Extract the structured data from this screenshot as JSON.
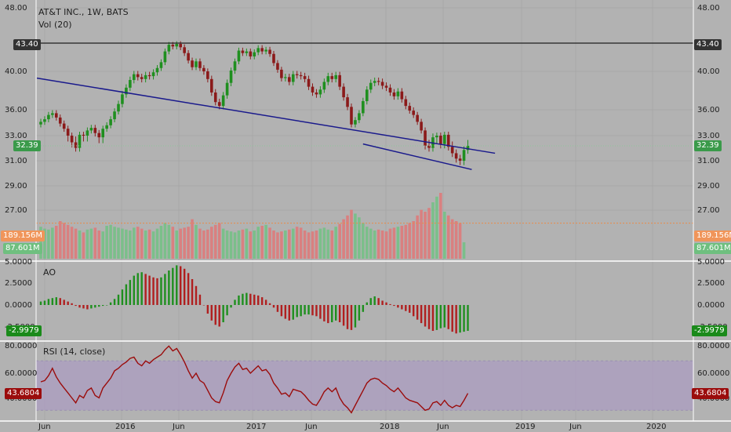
{
  "header": {
    "symbol": "AT&T INC., 1W, BATS",
    "volume_label": "Vol (20)",
    "ao_label": "AO",
    "rsi_label": "RSI (14, close)"
  },
  "axes": {
    "price_ticks": [
      "48.00",
      "40.00",
      "36.00",
      "33.00",
      "31.00",
      "29.00",
      "27.00"
    ],
    "ao_ticks": [
      "5.0000",
      "2.5000",
      "0.0000",
      "-2.5000"
    ],
    "rsi_ticks": [
      "80.0000",
      "60.0000",
      "40.0000"
    ],
    "time_ticks": [
      "Jun",
      "2016",
      "Jun",
      "2017",
      "Jun",
      "2018",
      "Jun",
      "2019",
      "Jun",
      "2020"
    ]
  },
  "tags": {
    "resistance": "43.40",
    "last_price": "32.39",
    "vol_avg": "189.156M",
    "vol_last": "87.601M",
    "ao_last": "-2.9979",
    "rsi_last": "43.6804"
  },
  "colors": {
    "background": "#b2b2b2",
    "up": "#1f8f1f",
    "down": "#8b1a1a",
    "vol_up": "#7bbf8a",
    "vol_down": "#d98080",
    "trendline": "#1a1a8c",
    "resistance": "#1e1e1e",
    "rsi_line": "#9b0c0c",
    "rsi_band": "#ab9cc0",
    "ao_up": "#1e8f1e",
    "ao_down": "#b01f1f",
    "tag_last": "#3a9a4a",
    "tag_vol_avg": "#f0955a",
    "tag_vol_last": "#6fbf7f",
    "tag_ao": "#1a8a1a",
    "tag_rsi": "#9b0c0c"
  },
  "chart_data": {
    "type": "line",
    "title": "AT&T INC., 1W, BATS",
    "price_close": [
      34.6,
      34.9,
      35.4,
      35.6,
      35.1,
      34.4,
      33.8,
      33.0,
      32.6,
      32.2,
      33.1,
      33.0,
      33.6,
      33.9,
      33.3,
      32.9,
      33.8,
      34.2,
      34.9,
      35.8,
      36.6,
      37.6,
      38.3,
      39.1,
      39.7,
      39.4,
      39.2,
      39.6,
      39.5,
      39.9,
      40.4,
      41.1,
      42.4,
      43.2,
      43.0,
      43.3,
      42.9,
      42.2,
      41.3,
      40.5,
      41.2,
      40.4,
      40.0,
      39.2,
      37.8,
      36.8,
      36.4,
      37.5,
      38.8,
      40.1,
      41.2,
      42.5,
      42.2,
      42.4,
      41.8,
      42.3,
      42.8,
      42.4,
      42.6,
      42.1,
      41.0,
      40.2,
      39.3,
      39.4,
      38.9,
      39.7,
      39.6,
      39.5,
      39.2,
      38.4,
      37.8,
      37.6,
      38.1,
      38.9,
      39.5,
      39.2,
      39.6,
      38.4,
      37.3,
      36.3,
      34.3,
      34.8,
      35.6,
      36.9,
      38.1,
      38.8,
      39.0,
      38.9,
      38.5,
      38.3,
      37.8,
      37.4,
      37.9,
      37.1,
      36.4,
      35.9,
      35.4,
      34.6,
      33.6,
      32.4,
      32.2,
      32.9,
      33.0,
      32.5,
      33.1,
      32.3,
      31.7,
      31.2,
      31.0,
      32.0,
      32.39
    ],
    "volume_m": [
      170,
      160,
      155,
      165,
      175,
      200,
      190,
      180,
      170,
      160,
      150,
      140,
      155,
      160,
      165,
      150,
      145,
      175,
      180,
      170,
      165,
      160,
      155,
      150,
      165,
      170,
      160,
      150,
      155,
      145,
      160,
      175,
      190,
      180,
      170,
      150,
      160,
      165,
      170,
      210,
      180,
      160,
      150,
      155,
      170,
      180,
      190,
      160,
      150,
      145,
      140,
      150,
      155,
      160,
      145,
      150,
      170,
      175,
      180,
      165,
      150,
      140,
      145,
      150,
      155,
      160,
      170,
      165,
      150,
      140,
      145,
      150,
      160,
      165,
      155,
      150,
      170,
      185,
      210,
      230,
      260,
      240,
      220,
      190,
      170,
      160,
      150,
      155,
      150,
      145,
      160,
      165,
      170,
      175,
      180,
      190,
      200,
      230,
      260,
      250,
      270,
      300,
      330,
      350,
      250,
      230,
      210,
      200,
      190,
      87.601
    ],
    "volume_avg_m": 189.156,
    "ao": [
      0.4,
      0.5,
      0.7,
      0.8,
      0.9,
      0.8,
      0.6,
      0.4,
      0.2,
      -0.1,
      -0.3,
      -0.4,
      -0.5,
      -0.4,
      -0.3,
      -0.2,
      -0.1,
      0.0,
      0.3,
      0.7,
      1.2,
      1.8,
      2.4,
      2.9,
      3.4,
      3.7,
      3.8,
      3.6,
      3.4,
      3.2,
      3.1,
      3.2,
      3.6,
      4.0,
      4.3,
      4.6,
      4.5,
      4.2,
      3.7,
      3.0,
      2.2,
      1.2,
      0.0,
      -1.0,
      -1.8,
      -2.3,
      -2.5,
      -2.0,
      -1.2,
      -0.3,
      0.6,
      1.1,
      1.3,
      1.4,
      1.3,
      1.2,
      1.1,
      0.9,
      0.6,
      0.2,
      -0.3,
      -0.8,
      -1.3,
      -1.6,
      -1.8,
      -1.7,
      -1.4,
      -1.3,
      -1.1,
      -1.1,
      -1.2,
      -1.3,
      -1.6,
      -1.9,
      -2.1,
      -2.0,
      -1.8,
      -2.0,
      -2.4,
      -2.8,
      -2.9,
      -2.6,
      -1.8,
      -0.8,
      0.3,
      0.8,
      1.0,
      0.8,
      0.5,
      0.3,
      0.1,
      -0.1,
      -0.3,
      -0.5,
      -0.7,
      -0.9,
      -1.3,
      -1.7,
      -2.1,
      -2.5,
      -2.8,
      -3.0,
      -2.9,
      -2.7,
      -2.6,
      -2.8,
      -3.1,
      -3.3,
      -3.2,
      -3.1,
      -2.9979
    ],
    "rsi": [
      53,
      54,
      58,
      64,
      57,
      52,
      48,
      44,
      40,
      36,
      42,
      40,
      46,
      48,
      42,
      40,
      48,
      52,
      56,
      62,
      64,
      67,
      69,
      72,
      73,
      68,
      66,
      70,
      68,
      71,
      73,
      75,
      79,
      82,
      78,
      80,
      75,
      69,
      62,
      56,
      60,
      54,
      52,
      46,
      40,
      37,
      36,
      44,
      54,
      60,
      65,
      68,
      63,
      64,
      60,
      63,
      66,
      62,
      63,
      59,
      52,
      48,
      43,
      44,
      41,
      47,
      46,
      45,
      42,
      38,
      35,
      34,
      39,
      45,
      48,
      45,
      48,
      40,
      35,
      32,
      28,
      34,
      40,
      46,
      52,
      55,
      56,
      55,
      52,
      50,
      47,
      45,
      48,
      44,
      40,
      38,
      37,
      36,
      33,
      30,
      31,
      36,
      37,
      34,
      38,
      34,
      32,
      34,
      33,
      38,
      43.6804
    ],
    "rsi_band": [
      30,
      70
    ],
    "resistance": 43.4,
    "trendlines": [
      {
        "from": [
          -1,
          39.3
        ],
        "to": [
          117,
          31.7
        ]
      },
      {
        "from": [
          83,
          32.5
        ],
        "to": [
          111,
          30.3
        ]
      }
    ]
  }
}
